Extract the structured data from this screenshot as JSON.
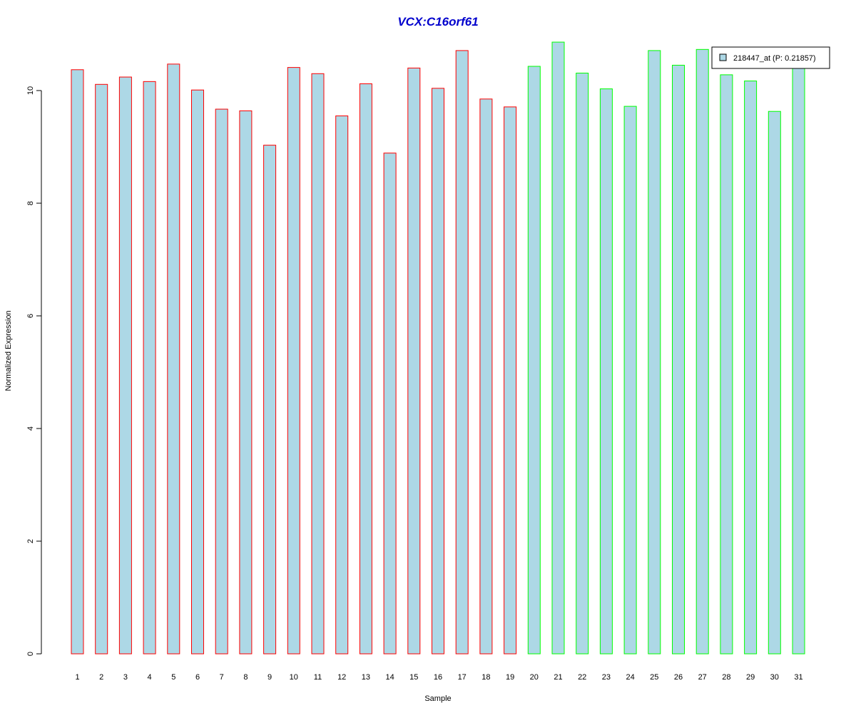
{
  "chart_data": {
    "type": "bar",
    "title": "VCX:C16orf61",
    "xlabel": "Sample",
    "ylabel": "Normalized Expression",
    "ylim": [
      0,
      11
    ],
    "yticks": [
      0,
      2,
      4,
      6,
      8,
      10
    ],
    "grid": false,
    "legend_position": "top-right",
    "categories": [
      "1",
      "2",
      "3",
      "4",
      "5",
      "6",
      "7",
      "8",
      "9",
      "10",
      "11",
      "12",
      "13",
      "14",
      "15",
      "16",
      "17",
      "18",
      "19",
      "20",
      "21",
      "22",
      "23",
      "24",
      "25",
      "26",
      "27",
      "28",
      "29",
      "30",
      "31"
    ],
    "series": [
      {
        "name": "218447_at (P: 0.21857)",
        "values": [
          10.37,
          10.11,
          10.24,
          10.16,
          10.47,
          10.01,
          9.67,
          9.64,
          9.03,
          10.41,
          10.3,
          9.55,
          10.12,
          8.89,
          10.4,
          10.04,
          10.71,
          9.85,
          9.71,
          10.43,
          10.86,
          10.31,
          10.03,
          9.72,
          10.71,
          10.45,
          10.73,
          10.28,
          10.17,
          9.63,
          10.42
        ]
      }
    ],
    "group_sizes": [
      19,
      12
    ],
    "colors": {
      "bar_fill": "#add8e6",
      "group1_border": "#ff0000",
      "group2_border": "#00ff00",
      "title": "#0000cd",
      "axis": "#000000"
    }
  }
}
